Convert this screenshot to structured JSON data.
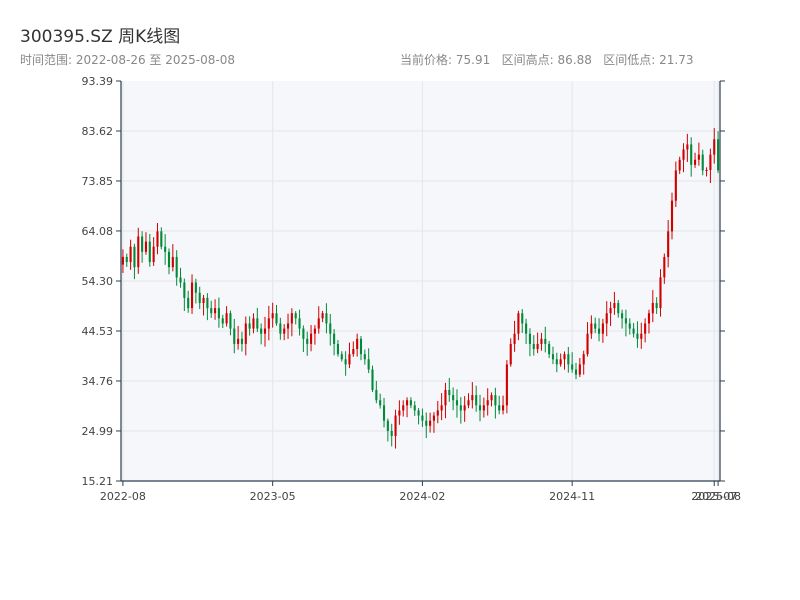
{
  "header": {
    "title": "300395.SZ 周K线图",
    "date_range_label": "时间范围: 2022-08-26 至 2025-08-08",
    "stats_label": "当前价格: 75.91   区间高点: 86.88   区间低点: 21.73"
  },
  "colors": {
    "up": "#d00000",
    "down": "#008a3a",
    "plot_bg": "#f5f7fa",
    "grid": "#e3e6ea",
    "axis": "#2c3e50"
  },
  "chart_data": {
    "type": "candlestick",
    "title": "300395.SZ 周K线图",
    "date_start": "2022-08-26",
    "date_end": "2025-08-08",
    "current_price": 75.91,
    "high": 86.88,
    "low": 21.73,
    "ylim": [
      15.21,
      93.39
    ],
    "y_ticks": [
      "15.21",
      "24.99",
      "34.76",
      "44.53",
      "54.30",
      "64.08",
      "73.85",
      "83.62",
      "93.39"
    ],
    "x_ticks": [
      "2022-08",
      "2023-05",
      "2024-02",
      "2024-11",
      "2025-07",
      "2025-08"
    ],
    "x_tick_positions": [
      0,
      39,
      78,
      117,
      154,
      155
    ],
    "grid": true,
    "up_color": "#d00000",
    "down_color": "#008a3a",
    "closes": [
      59,
      58,
      61,
      57,
      63,
      60,
      62,
      58,
      61,
      64,
      61,
      60,
      57,
      59,
      55,
      54,
      51,
      49,
      54,
      52,
      50,
      51,
      49,
      48,
      49,
      47,
      46,
      48,
      45,
      42,
      43,
      42,
      46,
      45,
      47,
      45,
      44,
      45,
      47,
      48,
      46,
      44,
      45,
      46,
      48,
      47,
      45,
      43,
      42,
      44,
      45,
      47,
      48,
      46,
      44,
      42,
      40,
      39,
      38,
      40,
      41,
      43,
      40,
      39,
      37,
      33,
      31,
      30,
      27,
      25,
      24,
      28,
      29,
      30,
      31,
      30,
      29,
      28,
      27,
      26,
      27,
      28,
      29,
      30,
      33,
      32,
      31,
      30,
      29,
      30,
      31,
      32,
      30,
      29,
      30,
      31,
      32,
      30,
      29,
      30,
      38,
      42,
      44,
      48,
      46,
      44,
      42,
      41,
      42,
      43,
      42,
      40,
      39,
      38,
      39,
      40,
      38,
      37,
      36,
      38,
      40,
      44,
      46,
      45,
      44,
      46,
      48,
      49,
      50,
      48,
      47,
      46,
      45,
      44,
      43,
      44,
      46,
      48,
      50,
      49,
      55,
      59,
      64,
      70,
      75.91,
      78,
      80,
      81,
      77,
      78,
      79,
      75.91,
      76,
      79,
      82,
      75.91
    ]
  }
}
